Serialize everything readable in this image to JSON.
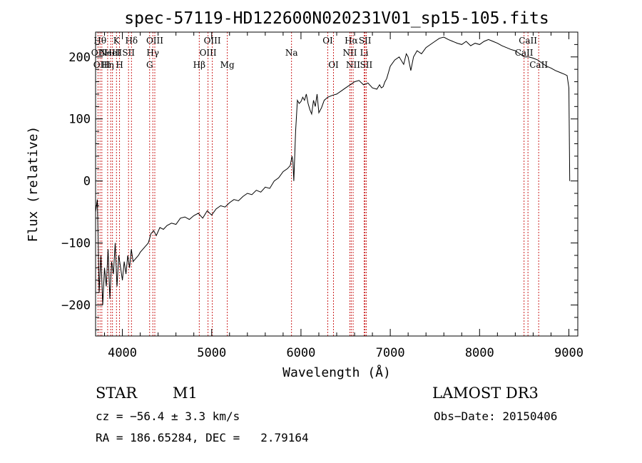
{
  "chart_data": {
    "type": "line",
    "title": "spec-57119-HD122600N020231V01_sp15-105.fits",
    "xlabel": "Wavelength (Å)",
    "ylabel": "Flux (relative)",
    "xlim": [
      3700,
      9100
    ],
    "ylim": [
      -250,
      240
    ],
    "xticks": [
      4000,
      5000,
      6000,
      7000,
      8000,
      9000
    ],
    "yticks": [
      -200,
      -100,
      0,
      100,
      200
    ],
    "xtick_labels": [
      "4000",
      "5000",
      "6000",
      "7000",
      "8000",
      "9000"
    ],
    "ytick_labels": [
      "−200",
      "−100",
      "0",
      "100",
      "200"
    ],
    "series": [
      {
        "name": "spectrum",
        "x": [
          3700,
          3720,
          3740,
          3760,
          3780,
          3800,
          3820,
          3840,
          3860,
          3880,
          3900,
          3920,
          3940,
          3960,
          3980,
          4000,
          4020,
          4040,
          4060,
          4080,
          4100,
          4120,
          4150,
          4180,
          4200,
          4230,
          4260,
          4290,
          4320,
          4350,
          4380,
          4420,
          4460,
          4500,
          4550,
          4600,
          4650,
          4700,
          4750,
          4800,
          4850,
          4900,
          4950,
          5000,
          5050,
          5100,
          5150,
          5200,
          5250,
          5300,
          5350,
          5400,
          5450,
          5500,
          5550,
          5600,
          5650,
          5700,
          5750,
          5800,
          5850,
          5880,
          5900,
          5910,
          5920,
          5940,
          5960,
          5980,
          6000,
          6020,
          6040,
          6060,
          6080,
          6100,
          6120,
          6140,
          6160,
          6180,
          6200,
          6230,
          6260,
          6300,
          6350,
          6400,
          6450,
          6500,
          6550,
          6600,
          6650,
          6700,
          6750,
          6800,
          6850,
          6880,
          6900,
          6920,
          6940,
          6960,
          6980,
          7000,
          7050,
          7100,
          7150,
          7180,
          7200,
          7230,
          7260,
          7300,
          7350,
          7400,
          7450,
          7500,
          7550,
          7600,
          7650,
          7700,
          7750,
          7800,
          7850,
          7900,
          7950,
          8000,
          8050,
          8100,
          8150,
          8200,
          8250,
          8300,
          8350,
          8400,
          8450,
          8500,
          8550,
          8600,
          8650,
          8700,
          8750,
          8800,
          8850,
          8900,
          8950,
          8980,
          9000,
          9010
        ],
        "y": [
          -50,
          -30,
          -180,
          -120,
          -200,
          -140,
          -170,
          -110,
          -190,
          -130,
          -150,
          -100,
          -170,
          -120,
          -140,
          -160,
          -130,
          -150,
          -120,
          -140,
          -110,
          -130,
          -125,
          -120,
          -115,
          -110,
          -105,
          -100,
          -85,
          -80,
          -88,
          -75,
          -78,
          -72,
          -68,
          -70,
          -60,
          -58,
          -62,
          -56,
          -52,
          -60,
          -48,
          -55,
          -45,
          -40,
          -42,
          -35,
          -30,
          -32,
          -25,
          -20,
          -22,
          -15,
          -18,
          -10,
          -12,
          0,
          5,
          15,
          20,
          25,
          40,
          30,
          0,
          80,
          130,
          125,
          128,
          135,
          130,
          140,
          125,
          115,
          108,
          130,
          120,
          140,
          110,
          118,
          130,
          135,
          138,
          140,
          145,
          150,
          155,
          160,
          162,
          155,
          158,
          150,
          148,
          155,
          150,
          152,
          160,
          165,
          175,
          185,
          195,
          200,
          188,
          205,
          200,
          178,
          200,
          210,
          205,
          215,
          220,
          225,
          230,
          232,
          228,
          225,
          222,
          220,
          225,
          218,
          222,
          220,
          225,
          228,
          225,
          222,
          218,
          215,
          212,
          210,
          205,
          200,
          200,
          198,
          195,
          190,
          185,
          182,
          178,
          175,
          172,
          170,
          150,
          0
        ]
      }
    ],
    "spectral_lines": [
      {
        "x": 3727,
        "label": "OII",
        "row": 1
      },
      {
        "x": 3750,
        "label": "Hθ",
        "row": 0
      },
      {
        "x": 3770,
        "label": "OIII",
        "row": 2
      },
      {
        "x": 3835,
        "label": "Hη",
        "row": 2
      },
      {
        "x": 3869,
        "label": "NeIII",
        "row": 1
      },
      {
        "x": 3889,
        "label": "HeI",
        "row": 1
      },
      {
        "x": 3934,
        "label": "K",
        "row": 0
      },
      {
        "x": 3968,
        "label": "H",
        "row": 2
      },
      {
        "x": 4069,
        "label": "SII",
        "row": 1
      },
      {
        "x": 4102,
        "label": "Hδ",
        "row": 0
      },
      {
        "x": 4305,
        "label": "G",
        "row": 2
      },
      {
        "x": 4341,
        "label": "Hγ",
        "row": 1
      },
      {
        "x": 4363,
        "label": "OIII",
        "row": 0
      },
      {
        "x": 4861,
        "label": "Hβ",
        "row": 2
      },
      {
        "x": 4959,
        "label": "OIII",
        "row": 1
      },
      {
        "x": 5007,
        "label": "OIII",
        "row": 0
      },
      {
        "x": 5175,
        "label": "Mg",
        "row": 2
      },
      {
        "x": 5894,
        "label": "Na",
        "row": 1
      },
      {
        "x": 6300,
        "label": "OI",
        "row": 0
      },
      {
        "x": 6364,
        "label": "OI",
        "row": 2
      },
      {
        "x": 6548,
        "label": "NII",
        "row": 1
      },
      {
        "x": 6563,
        "label": "Hα",
        "row": 0
      },
      {
        "x": 6584,
        "label": "NII",
        "row": 2
      },
      {
        "x": 6708,
        "label": "Li",
        "row": 1
      },
      {
        "x": 6717,
        "label": "SII",
        "row": 0
      },
      {
        "x": 6731,
        "label": "SII",
        "row": 2
      },
      {
        "x": 8498,
        "label": "CaII",
        "row": 1
      },
      {
        "x": 8542,
        "label": "CaII",
        "row": 0
      },
      {
        "x": 8662,
        "label": "CaII",
        "row": 2
      }
    ]
  },
  "info": {
    "object_class": "STAR",
    "subclass": "M1",
    "survey": "LAMOST DR3",
    "velocity": "cz = −56.4 ± 3.3 km/s",
    "obs_date": "Obs−Date: 20150406",
    "coords": "RA = 186.65284, DEC =   2.79164"
  },
  "colors": {
    "spectrum": "#000000",
    "line_marker": "#cc2222",
    "axis": "#000000"
  }
}
